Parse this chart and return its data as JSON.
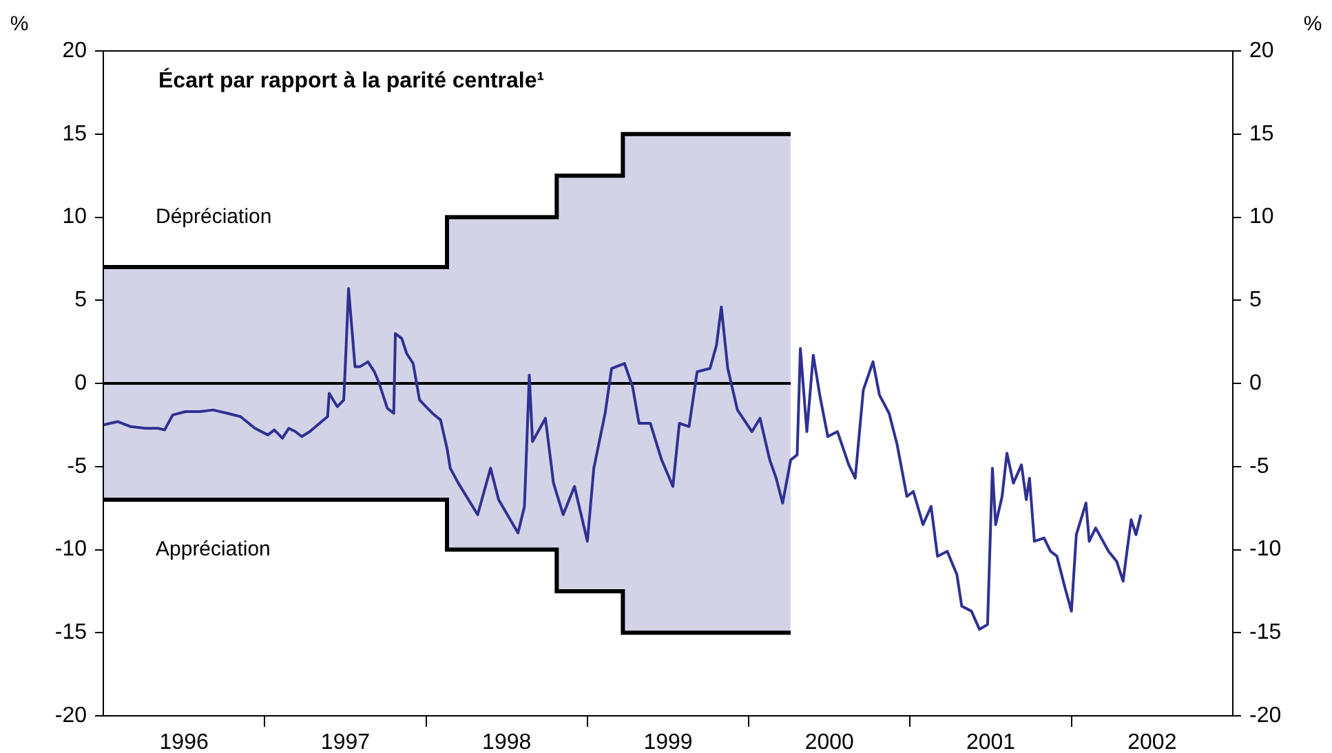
{
  "chart_data": {
    "type": "line",
    "title": "Écart par rapport à la parité centrale¹",
    "ylabel": "%",
    "y2label": "%",
    "xlim": [
      1996,
      2003
    ],
    "xticks": [
      {
        "value": 1996.5,
        "label": "1996"
      },
      {
        "value": 1997,
        "label": null
      },
      {
        "value": 1997.5,
        "label": "1997"
      },
      {
        "value": 1998,
        "label": null
      },
      {
        "value": 1998.5,
        "label": "1998"
      },
      {
        "value": 1999,
        "label": null
      },
      {
        "value": 1999.5,
        "label": "1999"
      },
      {
        "value": 2000,
        "label": null
      },
      {
        "value": 2000.5,
        "label": "2000"
      },
      {
        "value": 2001,
        "label": null
      },
      {
        "value": 2001.5,
        "label": "2001"
      },
      {
        "value": 2002,
        "label": null
      },
      {
        "value": 2002.5,
        "label": "2002"
      }
    ],
    "ylim": [
      -20,
      20
    ],
    "yticks": [
      -20,
      -15,
      -10,
      -5,
      0,
      5,
      10,
      15,
      20
    ],
    "y2lim": [
      -20,
      20
    ],
    "y2ticks": [
      -20,
      -15,
      -10,
      -5,
      0,
      5,
      10,
      15,
      20
    ],
    "grid": false,
    "legend": false,
    "annotations": [
      "Dépréciation",
      "Appréciation"
    ],
    "series": [
      {
        "type": "step",
        "color": "#000000",
        "x": [
          1996,
          1998.13,
          1998.81,
          1999.22,
          2000.26
        ],
        "values": [
          7,
          10,
          12.5,
          15,
          15
        ]
      },
      {
        "type": "step",
        "color": "#000000",
        "x": [
          1996,
          1998.13,
          1998.81,
          1999.22,
          2000.26
        ],
        "values": [
          -7,
          -10,
          -12.5,
          -15,
          -15
        ]
      },
      {
        "type": "step",
        "color": "#000000",
        "x": [
          1996,
          1998.13,
          1998.81,
          1999.22,
          2000.26
        ],
        "values": [
          0,
          0,
          0,
          0,
          0
        ],
        "lower": [
          -7,
          -10,
          -12.5,
          -15,
          -15
        ],
        "upper": [
          7,
          10,
          12.5,
          15,
          15
        ]
      },
      {
        "type": "line",
        "color": "#2e3192",
        "x": [
          1996.0,
          1996.09,
          1996.17,
          1996.26,
          1996.34,
          1996.38,
          1996.43,
          1996.51,
          1996.6,
          1996.68,
          1996.77,
          1996.85,
          1996.94,
          1997.02,
          1997.06,
          1997.11,
          1997.15,
          1997.19,
          1997.23,
          1997.28,
          1997.34,
          1997.39,
          1997.4,
          1997.45,
          1997.49,
          1997.5,
          1997.52,
          1997.56,
          1997.59,
          1997.64,
          1997.68,
          1997.71,
          1997.76,
          1997.8,
          1997.81,
          1997.85,
          1997.88,
          1997.92,
          1997.96,
          1998.0,
          1998.04,
          1998.09,
          1998.13,
          1998.15,
          1998.2,
          1998.32,
          1998.4,
          1998.45,
          1998.57,
          1998.61,
          1998.64,
          1998.66,
          1998.74,
          1998.79,
          1998.85,
          1998.92,
          1999.0,
          1999.04,
          1999.11,
          1999.15,
          1999.23,
          1999.28,
          1999.32,
          1999.39,
          1999.46,
          1999.53,
          1999.57,
          1999.63,
          1999.68,
          1999.76,
          1999.8,
          1999.83,
          1999.87,
          1999.93,
          2000.02,
          2000.07,
          2000.13,
          2000.17,
          2000.21,
          2000.26,
          2000.3,
          2000.32,
          2000.36,
          2000.4,
          2000.44,
          2000.49,
          2000.55,
          2000.62,
          2000.66,
          2000.71,
          2000.77,
          2000.81,
          2000.87,
          2000.92,
          2000.98,
          2001.02,
          2001.08,
          2001.13,
          2001.17,
          2001.23,
          2001.29,
          2001.32,
          2001.38,
          2001.43,
          2001.48,
          2001.51,
          2001.53,
          2001.57,
          2001.6,
          2001.64,
          2001.69,
          2001.72,
          2001.74,
          2001.77,
          2001.83,
          2001.87,
          2001.91,
          2001.96,
          2002.0,
          2002.03,
          2002.09,
          2002.11,
          2002.15,
          2002.23,
          2002.28,
          2002.32,
          2002.34,
          2002.37,
          2002.4,
          2002.43
        ],
        "values": [
          -2.5,
          -2.3,
          -2.6,
          -2.7,
          -2.7,
          -2.8,
          -1.9,
          -1.7,
          -1.7,
          -1.6,
          -1.8,
          -2.0,
          -2.7,
          -3.1,
          -2.8,
          -3.3,
          -2.7,
          -2.9,
          -3.2,
          -2.9,
          -2.4,
          -2.0,
          -0.6,
          -1.4,
          -1.0,
          1.1,
          5.7,
          1.0,
          1.0,
          1.3,
          0.7,
          0.0,
          -1.5,
          -1.8,
          3.0,
          2.7,
          1.8,
          1.2,
          -1.0,
          -1.4,
          -1.8,
          -2.2,
          -3.9,
          -5.1,
          -6.0,
          -7.9,
          -5.1,
          -7.0,
          -9.0,
          -7.4,
          0.5,
          -3.5,
          -2.1,
          -6.0,
          -7.9,
          -6.2,
          -9.5,
          -5.1,
          -1.8,
          0.9,
          1.2,
          -0.2,
          -2.4,
          -2.4,
          -4.6,
          -6.2,
          -2.4,
          -2.6,
          0.7,
          0.9,
          2.3,
          4.6,
          0.9,
          -1.6,
          -2.9,
          -2.1,
          -4.6,
          -5.7,
          -7.2,
          -4.6,
          -4.3,
          2.1,
          -2.9,
          1.7,
          -0.7,
          -3.2,
          -2.9,
          -4.9,
          -5.7,
          -0.4,
          1.3,
          -0.7,
          -1.8,
          -3.7,
          -6.8,
          -6.5,
          -8.5,
          -7.4,
          -10.4,
          -10.1,
          -11.5,
          -13.4,
          -13.7,
          -14.8,
          -14.5,
          -5.1,
          -8.5,
          -6.8,
          -4.2,
          -6.0,
          -4.9,
          -7.0,
          -5.7,
          -9.5,
          -9.3,
          -10.1,
          -10.4,
          -12.3,
          -13.7,
          -9.1,
          -7.2,
          -9.5,
          -8.7,
          -10.1,
          -10.7,
          -11.9,
          -10.4,
          -8.2,
          -9.1,
          -7.9
        ]
      }
    ]
  }
}
